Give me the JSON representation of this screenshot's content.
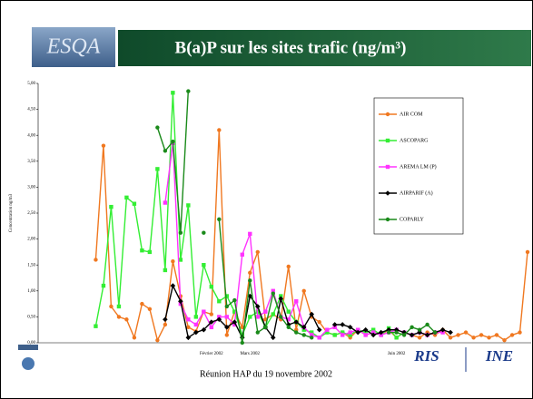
{
  "chart_data": {
    "type": "line",
    "title": "B(a)P sur les sites trafic (ng/m³)",
    "logo": "ESQA",
    "footer": "Réunion HAP du 19 novembre 2002",
    "logos": [
      "RIS",
      "INE"
    ],
    "y_label": "Concentration ng/m3",
    "ylim": [
      0,
      5
    ],
    "yticks": [
      {
        "value": 0,
        "label": "0,00"
      },
      {
        "value": 0.5,
        "label": "0,50"
      },
      {
        "value": 1,
        "label": "1,00"
      },
      {
        "value": 1.5,
        "label": "1,50"
      },
      {
        "value": 2,
        "label": "2,00"
      },
      {
        "value": 2.5,
        "label": "2,50"
      },
      {
        "value": 3,
        "label": "3,00"
      },
      {
        "value": 3.5,
        "label": "3,50"
      },
      {
        "value": 4,
        "label": "4,00"
      },
      {
        "value": 4.5,
        "label": "4,50"
      },
      {
        "value": 5,
        "label": "5,00"
      }
    ],
    "legend": "top-right",
    "categories": [
      null,
      null,
      null,
      null,
      null,
      null,
      null,
      null,
      null,
      null,
      null,
      null,
      null,
      null,
      null,
      null,
      null,
      null,
      null,
      null,
      null,
      null,
      "Février 2002",
      null,
      null,
      null,
      null,
      "Mars 2002",
      null,
      null,
      null,
      null,
      null,
      null,
      null,
      null,
      null,
      null,
      null,
      null,
      null,
      null,
      null,
      null,
      null,
      null,
      "Juin 2002",
      null,
      null,
      null,
      null,
      null,
      null,
      null,
      null,
      null,
      null,
      null,
      null,
      null,
      null,
      null,
      null,
      null
    ],
    "series": [
      {
        "name": "AIR COM",
        "color": "#f07820",
        "marker": "circle",
        "values": [
          null,
          null,
          null,
          null,
          null,
          null,
          null,
          1.6,
          3.8,
          0.7,
          0.5,
          0.45,
          0.1,
          0.75,
          0.65,
          0.05,
          0.35,
          1.57,
          0.9,
          0.3,
          0.22,
          0.6,
          0.55,
          4.1,
          0.15,
          0.6,
          0.3,
          1.35,
          1.75,
          0.45,
          0.55,
          0.45,
          1.47,
          0.25,
          1.0,
          0.5,
          0.4,
          0.2,
          0.15,
          0.2,
          0.1,
          0.25,
          0.15,
          0.2,
          0.15,
          0.25,
          0.1,
          0.2,
          0.15,
          0.1,
          0.2,
          0.15,
          0.25,
          0.1,
          0.15,
          0.2,
          0.1,
          0.15,
          0.1,
          0.15,
          0.05,
          0.15,
          0.2,
          1.75
        ]
      },
      {
        "name": "ASCOPARG",
        "color": "#33ee33",
        "marker": "square",
        "values": [
          null,
          null,
          null,
          null,
          null,
          null,
          null,
          0.32,
          1.1,
          2.62,
          0.7,
          2.8,
          2.68,
          1.78,
          1.75,
          3.35,
          1.4,
          4.82,
          1.6,
          2.65,
          0.5,
          1.5,
          1.08,
          0.8,
          0.9,
          0.6,
          0.15,
          0.5,
          0.6,
          0.3,
          0.55,
          0.9,
          0.6,
          0.4,
          0.25,
          0.2,
          0.1,
          0.2,
          0.15,
          0.2,
          0.15,
          0.25,
          0.2,
          0.25,
          0.15,
          0.28,
          0.1,
          0.2,
          0.15,
          0.2,
          null,
          null,
          null,
          null,
          null,
          null,
          null,
          null,
          null,
          null,
          null,
          null,
          null,
          null
        ]
      },
      {
        "name": "AREMA LM (P)",
        "color": "#ff33ff",
        "marker": "square",
        "values": [
          null,
          null,
          null,
          null,
          null,
          null,
          null,
          null,
          null,
          null,
          null,
          null,
          null,
          null,
          null,
          null,
          2.7,
          3.85,
          0.75,
          0.45,
          0.35,
          0.6,
          0.3,
          0.5,
          0.5,
          0.35,
          1.7,
          2.1,
          0.5,
          0.6,
          1.0,
          0.5,
          0.45,
          0.8,
          0.3,
          0.15,
          0.1,
          0.25,
          0.3,
          0.15,
          0.2,
          0.25,
          0.15,
          0.2,
          0.15,
          0.2,
          0.25,
          0.2,
          0.15,
          0.2,
          0.15,
          0.2,
          0.2,
          null,
          null,
          null,
          null,
          null,
          null,
          null,
          null,
          null,
          null,
          null
        ]
      },
      {
        "name": "AIRPARIF (A)",
        "color": "#000000",
        "marker": "diamond",
        "values": [
          null,
          null,
          null,
          null,
          null,
          null,
          null,
          null,
          null,
          null,
          null,
          null,
          null,
          null,
          null,
          null,
          0.45,
          1.1,
          0.8,
          0.1,
          0.2,
          0.25,
          0.4,
          0.45,
          0.3,
          0.4,
          0.1,
          0.9,
          0.7,
          0.3,
          0.1,
          0.85,
          0.35,
          0.4,
          0.3,
          0.55,
          0.25,
          null,
          0.35,
          0.35,
          0.3,
          0.2,
          0.25,
          0.15,
          0.2,
          0.25,
          0.25,
          0.2,
          0.15,
          0.2,
          0.15,
          0.2,
          0.25,
          0.2,
          null,
          null,
          null,
          null,
          null,
          null,
          null,
          null,
          null,
          null
        ]
      },
      {
        "name": "COPARLY",
        "color": "#1a8a1a",
        "marker": "circle",
        "values": [
          null,
          null,
          null,
          null,
          null,
          null,
          null,
          null,
          null,
          null,
          null,
          null,
          null,
          null,
          null,
          4.15,
          3.7,
          3.88,
          2.12,
          4.85,
          null,
          2.12,
          null,
          2.38,
          0.7,
          0.82,
          0.0,
          1.2,
          0.2,
          0.3,
          0.95,
          0.5,
          0.3,
          0.2,
          0.15,
          0.1,
          null,
          null,
          null,
          null,
          null,
          null,
          null,
          null,
          null,
          0.2,
          0.2,
          0.15,
          0.3,
          0.25,
          0.35,
          0.2,
          null,
          null,
          null,
          null,
          null,
          null,
          null,
          null,
          null,
          null,
          null,
          null
        ]
      }
    ]
  }
}
